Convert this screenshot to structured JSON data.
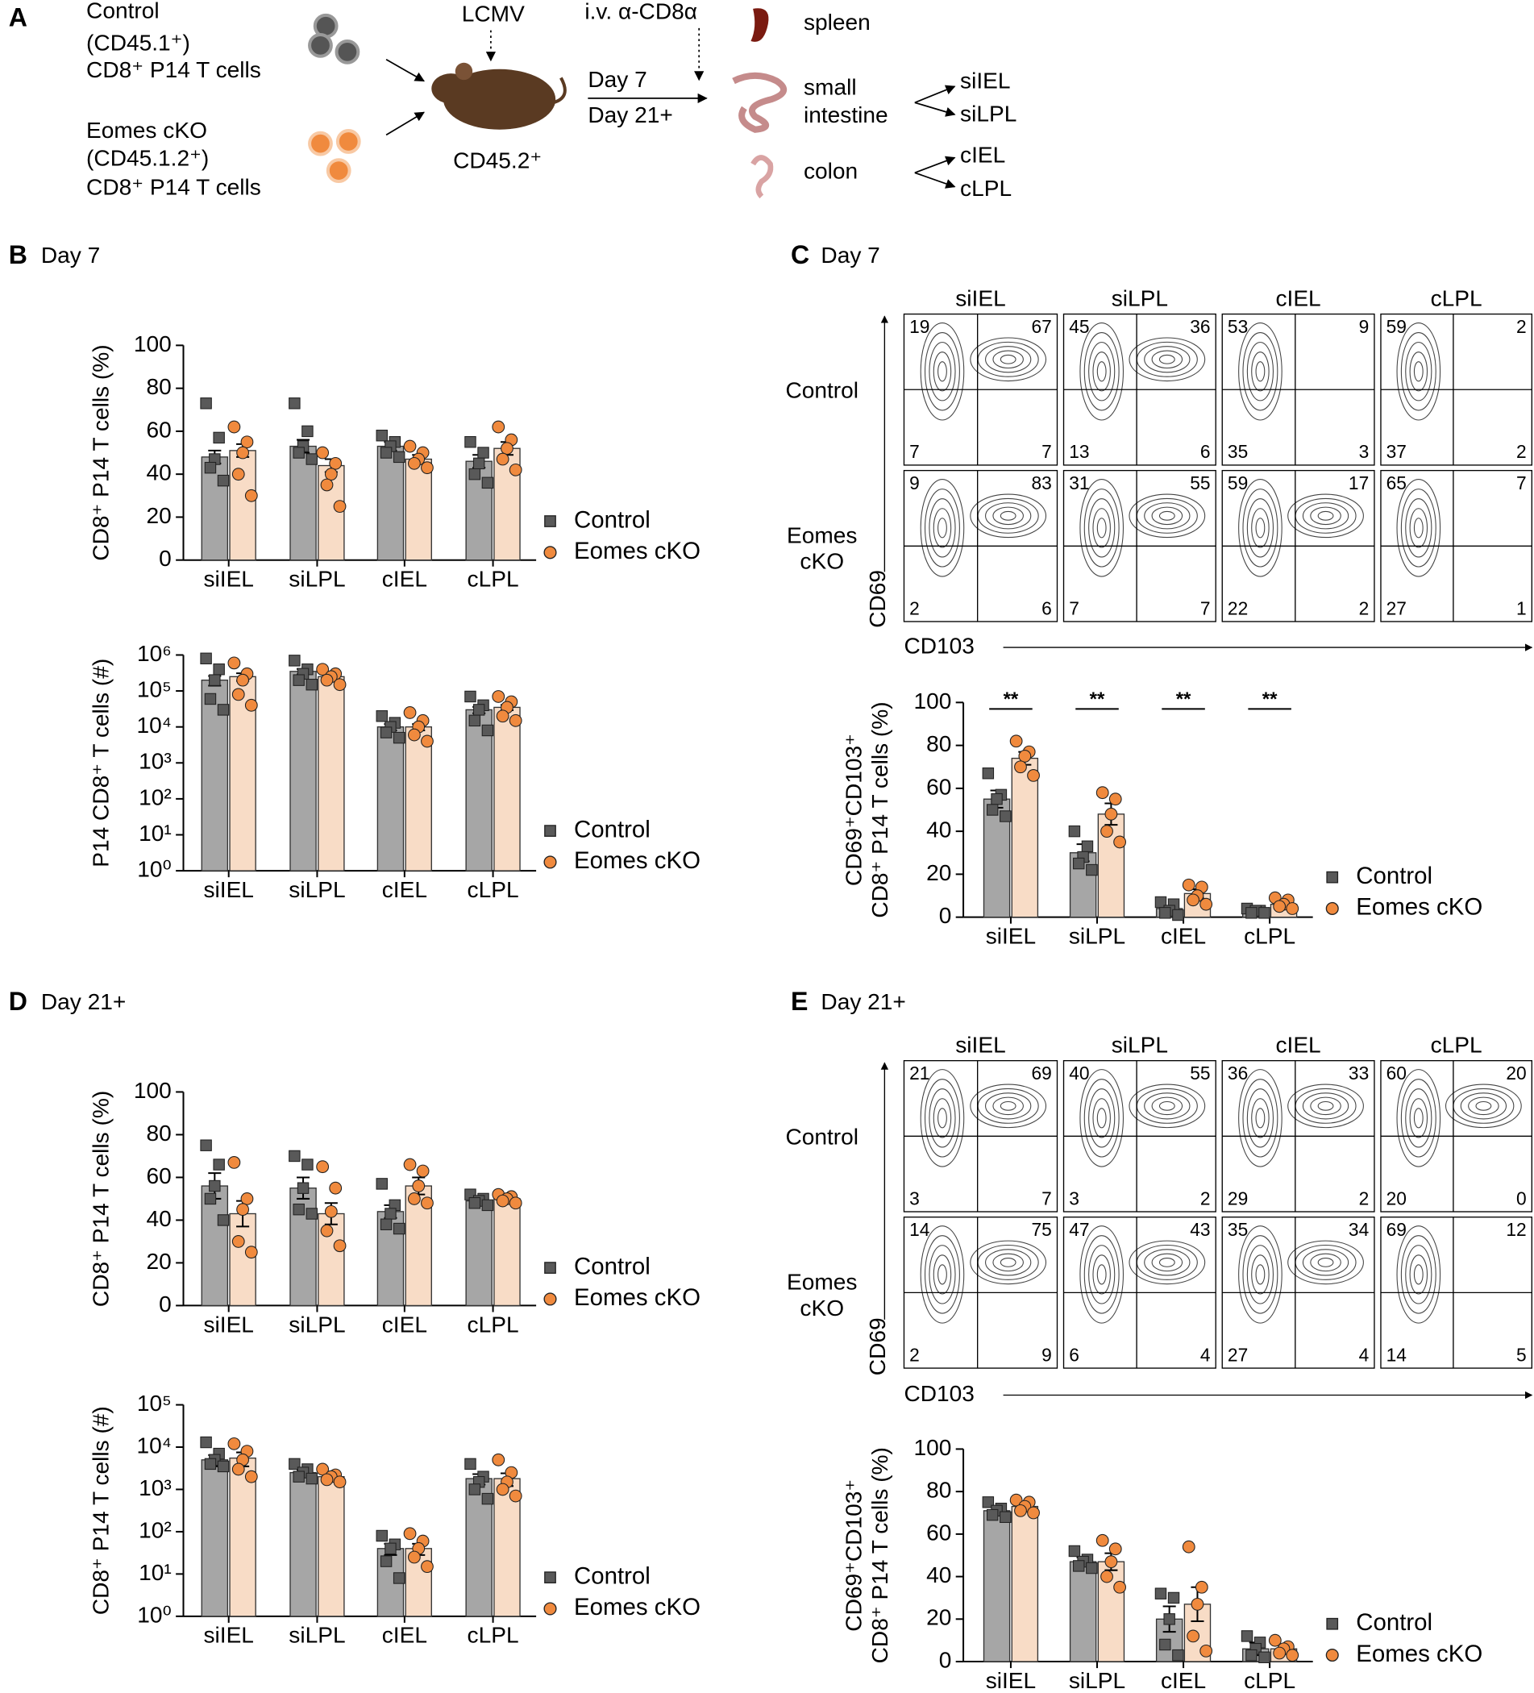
{
  "diagram": {
    "texts": [
      "A",
      "Control",
      "(CD45.1⁺)",
      "CD8⁺ P14 T cells",
      "Eomes cKO",
      "(CD45.1.2⁺)",
      "CD8⁺ P14 T cells",
      "LCMV",
      "CD45.2⁺",
      "i.v. α-CD8α",
      "Day 7",
      "Day 21+",
      "spleen",
      "small",
      "intestine",
      "colon",
      "siIEL",
      "siLPL",
      "cIEL",
      "cLPL"
    ]
  },
  "panels": [
    {
      "label": "B",
      "title": "Day 7"
    },
    {
      "label": "C",
      "title": "Day 7"
    },
    {
      "label": "D",
      "title": "Day 21+"
    },
    {
      "label": "E",
      "title": "Day 21+"
    }
  ],
  "flow": [
    {
      "columns": [
        "siIEL",
        "siLPL",
        "cIEL",
        "cLPL"
      ],
      "rows": [
        "Control",
        "Eomes cKO"
      ],
      "x_label": "CD103",
      "y_label": "CD69",
      "quadrants": [
        [
          [
            19,
            67,
            7,
            7
          ],
          [
            45,
            36,
            13,
            6
          ],
          [
            53,
            9,
            35,
            3
          ],
          [
            59,
            2,
            37,
            2
          ]
        ],
        [
          [
            9,
            83,
            2,
            6
          ],
          [
            31,
            55,
            7,
            7
          ],
          [
            59,
            17,
            22,
            2
          ],
          [
            65,
            7,
            27,
            1
          ]
        ]
      ]
    },
    {
      "columns": [
        "siIEL",
        "siLPL",
        "cIEL",
        "cLPL"
      ],
      "rows": [
        "Control",
        "Eomes cKO"
      ],
      "x_label": "CD103",
      "y_label": "CD69",
      "quadrants": [
        [
          [
            21,
            69,
            3,
            7
          ],
          [
            40,
            55,
            3,
            2
          ],
          [
            36,
            33,
            29,
            2
          ],
          [
            60,
            20,
            20,
            0
          ]
        ],
        [
          [
            14,
            75,
            2,
            9
          ],
          [
            47,
            43,
            6,
            4
          ],
          [
            35,
            34,
            27,
            4
          ],
          [
            69,
            12,
            14,
            5
          ]
        ]
      ]
    }
  ],
  "chart_data": [
    {
      "type": "bar",
      "ylabel": [
        "CD8⁺ P14 T cells (%)"
      ],
      "categories": [
        "siIEL",
        "siLPL",
        "cIEL",
        "cLPL"
      ],
      "ylim": [
        0,
        100
      ],
      "yticks": [
        0,
        20,
        40,
        60,
        80,
        100
      ],
      "series": [
        {
          "name": "Control",
          "color": "#a6a6a6",
          "marker_color": "#595959",
          "values": [
            48,
            53,
            53,
            46
          ],
          "errors": [
            3,
            3,
            2,
            3
          ],
          "points": [
            [
              73,
              57,
              47,
              43,
              37
            ],
            [
              73,
              60,
              53,
              50,
              47
            ],
            [
              58,
              55,
              53,
              50,
              48
            ],
            [
              55,
              50,
              45,
              40,
              36
            ]
          ]
        },
        {
          "name": "Eomes cKO",
          "color": "#f8dcc6",
          "marker_color": "#f08a3e",
          "values": [
            51,
            44,
            47,
            52
          ],
          "errors": [
            3,
            3,
            2,
            3
          ],
          "points": [
            [
              62,
              55,
              50,
              40,
              30
            ],
            [
              50,
              45,
              40,
              35,
              25
            ],
            [
              53,
              50,
              47,
              45,
              43
            ],
            [
              62,
              56,
              52,
              47,
              42
            ]
          ]
        }
      ]
    },
    {
      "type": "bar",
      "log": true,
      "ylabel": [
        "P14 CD8⁺ T cells (#)"
      ],
      "categories": [
        "siIEL",
        "siLPL",
        "cIEL",
        "cLPL"
      ],
      "ylim": [
        1,
        1000000
      ],
      "yticks": [
        {
          "value": 1,
          "label": "10⁰"
        },
        {
          "value": 10,
          "label": "10¹"
        },
        {
          "value": 100,
          "label": "10²"
        },
        {
          "value": 1000,
          "label": "10³"
        },
        {
          "value": 10000,
          "label": "10⁴"
        },
        {
          "value": 100000,
          "label": "10⁵"
        },
        {
          "value": 1000000,
          "label": "10⁶"
        }
      ],
      "series": [
        {
          "name": "Control",
          "color": "#a6a6a6",
          "marker_color": "#595959",
          "values": [
            200000,
            350000,
            10000,
            30000
          ],
          "errors": [
            60000,
            60000,
            2000,
            6000
          ],
          "points": [
            [
              800000,
              400000,
              200000,
              60000,
              30000
            ],
            [
              700000,
              400000,
              300000,
              200000,
              150000
            ],
            [
              20000,
              13000,
              10000,
              7000,
              5000
            ],
            [
              70000,
              40000,
              30000,
              15000,
              8000
            ]
          ]
        },
        {
          "name": "Eomes cKO",
          "color": "#f8dcc6",
          "marker_color": "#f08a3e",
          "values": [
            250000,
            250000,
            10000,
            35000
          ],
          "errors": [
            60000,
            30000,
            2000,
            6000
          ],
          "points": [
            [
              600000,
              300000,
              200000,
              80000,
              40000
            ],
            [
              400000,
              300000,
              250000,
              200000,
              150000
            ],
            [
              25000,
              15000,
              10000,
              6000,
              4000
            ],
            [
              70000,
              50000,
              35000,
              20000,
              15000
            ]
          ]
        }
      ]
    },
    {
      "type": "bar",
      "ylabel": [
        "CD69⁺CD103⁺",
        "CD8⁺ P14 T cells (%)"
      ],
      "categories": [
        "siIEL",
        "siLPL",
        "cIEL",
        "cLPL"
      ],
      "ylim": [
        0,
        100
      ],
      "yticks": [
        0,
        20,
        40,
        60,
        80,
        100
      ],
      "annotations": [
        "**",
        "**",
        "**",
        "**"
      ],
      "series": [
        {
          "name": "Control",
          "color": "#a6a6a6",
          "marker_color": "#595959",
          "values": [
            55,
            30,
            4,
            3
          ],
          "errors": [
            4,
            4,
            1,
            1
          ],
          "points": [
            [
              67,
              57,
              55,
              50,
              47
            ],
            [
              40,
              33,
              28,
              25,
              22
            ],
            [
              7,
              6,
              3,
              2,
              1
            ],
            [
              4,
              3,
              3,
              2,
              2
            ]
          ]
        },
        {
          "name": "Eomes cKO",
          "color": "#f8dcc6",
          "marker_color": "#f08a3e",
          "values": [
            74,
            48,
            11,
            6
          ],
          "errors": [
            3,
            5,
            2,
            1
          ],
          "points": [
            [
              82,
              77,
              75,
              70,
              66
            ],
            [
              58,
              55,
              48,
              40,
              35
            ],
            [
              15,
              14,
              10,
              8,
              6
            ],
            [
              9,
              8,
              6,
              5,
              4
            ]
          ]
        }
      ]
    },
    {
      "type": "bar",
      "ylabel": [
        "CD8⁺ P14 T cells (%)"
      ],
      "categories": [
        "siIEL",
        "siLPL",
        "cIEL",
        "cLPL"
      ],
      "ylim": [
        0,
        100
      ],
      "yticks": [
        0,
        20,
        40,
        60,
        80,
        100
      ],
      "series": [
        {
          "name": "Control",
          "color": "#a6a6a6",
          "marker_color": "#595959",
          "values": [
            56,
            55,
            44,
            49
          ],
          "errors": [
            6,
            5,
            3,
            1
          ],
          "points": [
            [
              75,
              66,
              56,
              50,
              40
            ],
            [
              70,
              66,
              55,
              45,
              43
            ],
            [
              57,
              47,
              43,
              38,
              36
            ],
            [
              52,
              50,
              49,
              48,
              47
            ]
          ]
        },
        {
          "name": "Eomes cKO",
          "color": "#f8dcc6",
          "marker_color": "#f08a3e",
          "values": [
            43,
            43,
            56,
            50
          ],
          "errors": [
            6,
            5,
            4,
            1
          ],
          "points": [
            [
              67,
              50,
              45,
              30,
              25
            ],
            [
              65,
              55,
              44,
              35,
              28
            ],
            [
              66,
              63,
              56,
              50,
              48
            ],
            [
              52,
              51,
              50,
              49,
              48
            ]
          ]
        }
      ]
    },
    {
      "type": "bar",
      "log": true,
      "ylabel": [
        "CD8⁺ P14 T cells (#)"
      ],
      "categories": [
        "siIEL",
        "siLPL",
        "cIEL",
        "cLPL"
      ],
      "ylim": [
        1,
        100000
      ],
      "yticks": [
        {
          "value": 1,
          "label": "10⁰"
        },
        {
          "value": 10,
          "label": "10¹"
        },
        {
          "value": 100,
          "label": "10²"
        },
        {
          "value": 1000,
          "label": "10³"
        },
        {
          "value": 10000,
          "label": "10⁴"
        },
        {
          "value": 100000,
          "label": "10⁵"
        }
      ],
      "series": [
        {
          "name": "Control",
          "color": "#a6a6a6",
          "marker_color": "#595959",
          "values": [
            5000,
            2500,
            40,
            1800
          ],
          "errors": [
            1500,
            400,
            12,
            500
          ],
          "points": [
            [
              13000,
              7000,
              5000,
              4000,
              3500
            ],
            [
              4000,
              3000,
              2500,
              2000,
              1800
            ],
            [
              80,
              50,
              40,
              20,
              8
            ],
            [
              4000,
              2000,
              1500,
              1000,
              600
            ]
          ]
        },
        {
          "name": "Eomes cKO",
          "color": "#f8dcc6",
          "marker_color": "#f08a3e",
          "values": [
            5500,
            2000,
            40,
            1800
          ],
          "errors": [
            2000,
            300,
            12,
            600
          ],
          "points": [
            [
              12000,
              8000,
              5000,
              3000,
              2000
            ],
            [
              3000,
              2200,
              2000,
              1700,
              1500
            ],
            [
              90,
              60,
              40,
              25,
              15
            ],
            [
              5000,
              2500,
              1500,
              1000,
              700
            ]
          ]
        }
      ]
    },
    {
      "type": "bar",
      "ylabel": [
        "CD69⁺CD103⁺",
        "CD8⁺ P14 T cells (%)"
      ],
      "categories": [
        "siIEL",
        "siLPL",
        "cIEL",
        "cLPL"
      ],
      "ylim": [
        0,
        100
      ],
      "yticks": [
        0,
        20,
        40,
        60,
        80,
        100
      ],
      "series": [
        {
          "name": "Control",
          "color": "#a6a6a6",
          "marker_color": "#595959",
          "values": [
            71,
            47,
            20,
            6
          ],
          "errors": [
            2,
            2,
            6,
            3
          ],
          "points": [
            [
              75,
              72,
              71,
              69,
              68
            ],
            [
              52,
              48,
              47,
              45,
              44
            ],
            [
              32,
              30,
              20,
              8,
              3
            ],
            [
              12,
              9,
              6,
              3,
              2
            ]
          ]
        },
        {
          "name": "Eomes cKO",
          "color": "#f8dcc6",
          "marker_color": "#f08a3e",
          "values": [
            73,
            47,
            27,
            6
          ],
          "errors": [
            2,
            4,
            8,
            2
          ],
          "points": [
            [
              76,
              75,
              73,
              71,
              70
            ],
            [
              57,
              53,
              47,
              40,
              35
            ],
            [
              54,
              35,
              27,
              12,
              5
            ],
            [
              10,
              7,
              6,
              4,
              3
            ]
          ]
        }
      ]
    }
  ]
}
